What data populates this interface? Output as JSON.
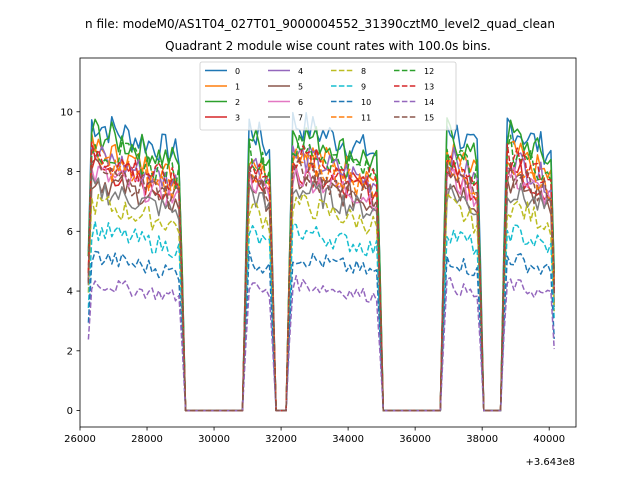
{
  "suptitle": "n file: modeM0/AS1T04_027T01_9000004552_31390cztM0_level2_quad_clean",
  "chart_data": {
    "type": "line",
    "title": "Quadrant 2 module wise count rates with 100.0s bins.",
    "xlabel": "",
    "ylabel": "",
    "x_offset_label": "+3.643e8",
    "x_offset": 364300000,
    "xlim": [
      26000,
      40800
    ],
    "ylim": [
      -0.55,
      11.8
    ],
    "xticks": [
      26000,
      28000,
      30000,
      32000,
      34000,
      36000,
      38000,
      40000
    ],
    "yticks": [
      0,
      2,
      4,
      6,
      8,
      10
    ],
    "grid": false,
    "legend": {
      "placement": "top-center",
      "columns": 4
    },
    "x_start": 26250,
    "x_step": 100,
    "observing_segments": [
      [
        26250,
        29050
      ],
      [
        30950,
        31750
      ],
      [
        32250,
        34950
      ],
      [
        36850,
        37950
      ],
      [
        38650,
        40150
      ]
    ],
    "series": [
      {
        "name": "0",
        "color": "#1f77b4",
        "dash": "solid",
        "level": 9.7
      },
      {
        "name": "1",
        "color": "#ff7f0e",
        "dash": "solid",
        "level": 8.8
      },
      {
        "name": "2",
        "color": "#2ca02c",
        "dash": "solid",
        "level": 9.4
      },
      {
        "name": "3",
        "color": "#d62728",
        "dash": "solid",
        "level": 8.2
      },
      {
        "name": "4",
        "color": "#9467bd",
        "dash": "solid",
        "level": 8.6
      },
      {
        "name": "5",
        "color": "#8c564b",
        "dash": "solid",
        "level": 7.8
      },
      {
        "name": "6",
        "color": "#e377c2",
        "dash": "solid",
        "level": 8.0
      },
      {
        "name": "7",
        "color": "#7f7f7f",
        "dash": "solid",
        "level": 7.5
      },
      {
        "name": "8",
        "color": "#bcbd22",
        "dash": "dashed",
        "level": 7.0
      },
      {
        "name": "9",
        "color": "#17becf",
        "dash": "dashed",
        "level": 6.1
      },
      {
        "name": "10",
        "color": "#1f77b4",
        "dash": "dashed",
        "level": 5.2
      },
      {
        "name": "11",
        "color": "#ff7f0e",
        "dash": "dashed",
        "level": 8.4
      },
      {
        "name": "12",
        "color": "#2ca02c",
        "dash": "dashed",
        "level": 8.9
      },
      {
        "name": "13",
        "color": "#d62728",
        "dash": "dashed",
        "level": 8.6
      },
      {
        "name": "14",
        "color": "#9467bd",
        "dash": "dashed",
        "level": 4.3
      },
      {
        "name": "15",
        "color": "#8c564b",
        "dash": "dashed",
        "level": 8.1
      }
    ]
  }
}
